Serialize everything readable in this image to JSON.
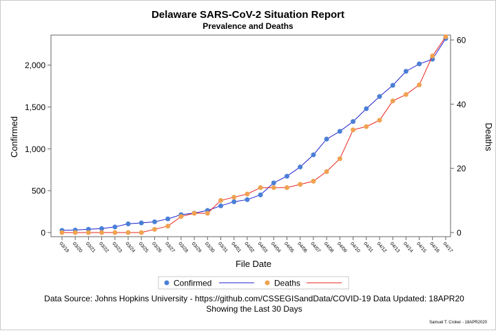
{
  "chart_data": {
    "type": "line",
    "title": "Delaware SARS-CoV-2 Situation Report",
    "subtitle": "Prevalence and Deaths",
    "xlabel": "File Date",
    "ylabel": "Confirmed",
    "y2label": "Deaths",
    "categories": [
      "03/19",
      "03/20",
      "03/21",
      "03/22",
      "03/23",
      "03/24",
      "03/25",
      "03/26",
      "03/27",
      "03/28",
      "03/29",
      "03/30",
      "03/31",
      "04/01",
      "04/02",
      "04/03",
      "04/04",
      "04/05",
      "04/06",
      "04/07",
      "04/08",
      "04/09",
      "04/10",
      "04/11",
      "04/12",
      "04/13",
      "04/14",
      "04/15",
      "04/16",
      "04/17"
    ],
    "ylim": [
      0,
      2350
    ],
    "yticks": [
      0,
      500,
      1000,
      1500,
      2000
    ],
    "ytick_labels": [
      "0",
      "500",
      "1,000",
      "1,500",
      "2,000"
    ],
    "y2lim": [
      0,
      61.3
    ],
    "y2ticks": [
      0,
      20,
      40,
      60
    ],
    "y2tick_labels": [
      "0",
      "20",
      "40",
      "60"
    ],
    "grid": false,
    "legend_position": "bottom",
    "series": [
      {
        "name": "Confirmed",
        "axis": "left",
        "marker_color": "#4a7fd6",
        "line_color": "#1d1dcf",
        "values": [
          26,
          30,
          39,
          47,
          67,
          104,
          115,
          128,
          163,
          214,
          232,
          264,
          319,
          368,
          393,
          450,
          593,
          673,
          783,
          928,
          1116,
          1209,
          1326,
          1479,
          1625,
          1758,
          1926,
          2014,
          2070,
          2317
        ]
      },
      {
        "name": "Deaths",
        "axis": "right",
        "marker_color": "#f0a250",
        "line_color": "#e8231b",
        "values": [
          0,
          0,
          0,
          0,
          0,
          0,
          0,
          1,
          2,
          5,
          6,
          6,
          10,
          11,
          12,
          14,
          14,
          14,
          15,
          16,
          19,
          23,
          32,
          33,
          35,
          41,
          43,
          46,
          55,
          61
        ]
      }
    ],
    "footnote_line1": "Data Source: Johns Hopkins University - https://github.com/CSSEGISandData/COVID-19 Data Updated: 18APR20",
    "footnote_line2": "Showing the Last 30 Days",
    "credit": "Samuel T. Croker - 18APR2020"
  }
}
